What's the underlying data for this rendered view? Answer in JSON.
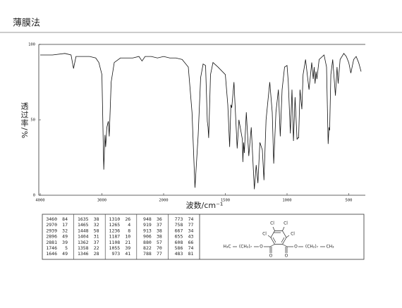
{
  "header": {
    "title": "薄膜法"
  },
  "chart_data": {
    "type": "line",
    "x_label": "波数/cm⁻¹",
    "y_label": "透过率/%",
    "xlim": [
      4000,
      400
    ],
    "ylim": [
      0,
      100
    ],
    "x_scale_change": {
      "at": 2000,
      "factor": 2
    },
    "xticks": [
      4000,
      3000,
      2000,
      1500,
      1000,
      500
    ],
    "yticks": [
      0,
      50,
      100
    ],
    "x": [
      4000,
      3800,
      3600,
      3500,
      3460,
      3420,
      3300,
      3200,
      3100,
      3050,
      3000,
      2970,
      2950,
      2939,
      2920,
      2896,
      2881,
      2850,
      2800,
      2700,
      2500,
      2400,
      2350,
      2300,
      2200,
      2100,
      2000,
      1950,
      1900,
      1850,
      1800,
      1770,
      1746,
      1720,
      1700,
      1680,
      1660,
      1646,
      1640,
      1635,
      1620,
      1600,
      1560,
      1500,
      1480,
      1465,
      1455,
      1448,
      1430,
      1404,
      1390,
      1362,
      1358,
      1352,
      1346,
      1330,
      1310,
      1290,
      1265,
      1250,
      1236,
      1220,
      1200,
      1187,
      1170,
      1140,
      1120,
      1108,
      1090,
      1070,
      1055,
      1040,
      1020,
      1000,
      990,
      973,
      960,
      948,
      935,
      919,
      913,
      906,
      895,
      880,
      870,
      850,
      822,
      800,
      788,
      780,
      773,
      765,
      758,
      740,
      700,
      680,
      667,
      660,
      655,
      645,
      630,
      608,
      595,
      586,
      570,
      540,
      520,
      500,
      483,
      460,
      440,
      420,
      400
    ],
    "series": [
      {
        "name": "spectrum",
        "color": "#111111",
        "values": [
          93,
          93,
          94,
          93,
          84,
          92,
          92,
          92,
          91,
          88,
          80,
          17,
          40,
          32,
          45,
          49,
          39,
          75,
          88,
          91,
          91,
          92,
          89,
          92,
          92,
          91,
          92,
          91,
          91,
          90,
          85,
          55,
          5,
          40,
          78,
          87,
          86,
          49,
          45,
          38,
          80,
          88,
          85,
          80,
          60,
          32,
          60,
          58,
          75,
          31,
          50,
          37,
          22,
          35,
          28,
          55,
          26,
          45,
          4,
          20,
          8,
          35,
          30,
          10,
          50,
          75,
          55,
          21,
          55,
          70,
          39,
          70,
          85,
          86,
          75,
          41,
          70,
          36,
          65,
          37,
          38,
          38,
          70,
          57,
          80,
          90,
          70,
          88,
          77,
          85,
          74,
          82,
          77,
          90,
          93,
          85,
          34,
          45,
          43,
          80,
          90,
          66,
          85,
          74,
          90,
          94,
          92,
          88,
          81,
          90,
          92,
          88,
          82
        ]
      }
    ]
  },
  "peak_table": {
    "columns": [
      [
        [
          3460,
          84
        ],
        [
          2970,
          17
        ],
        [
          2939,
          32
        ],
        [
          2896,
          49
        ],
        [
          2881,
          39
        ],
        [
          1746,
          5
        ],
        [
          1646,
          49
        ]
      ],
      [
        [
          1635,
          38
        ],
        [
          1465,
          32
        ],
        [
          1448,
          58
        ],
        [
          1404,
          31
        ],
        [
          1362,
          37
        ],
        [
          1358,
          22
        ],
        [
          1346,
          28
        ]
      ],
      [
        [
          1310,
          26
        ],
        [
          1265,
          4
        ],
        [
          1236,
          8
        ],
        [
          1187,
          10
        ],
        [
          1108,
          21
        ],
        [
          1055,
          39
        ],
        [
          973,
          41
        ]
      ],
      [
        [
          948,
          36
        ],
        [
          919,
          37
        ],
        [
          913,
          38
        ],
        [
          906,
          38
        ],
        [
          880,
          57
        ],
        [
          822,
          70
        ],
        [
          788,
          77
        ]
      ],
      [
        [
          773,
          74
        ],
        [
          758,
          77
        ],
        [
          667,
          34
        ],
        [
          655,
          43
        ],
        [
          608,
          66
        ],
        [
          586,
          74
        ],
        [
          483,
          81
        ]
      ]
    ]
  },
  "structure": {
    "labels": [
      "Cl",
      "Cl",
      "Cl",
      "Cl",
      "O",
      "O",
      "O",
      "O",
      "H₃C",
      "(CH₂)₇",
      "(CH₂)₇",
      "CH₃"
    ]
  }
}
